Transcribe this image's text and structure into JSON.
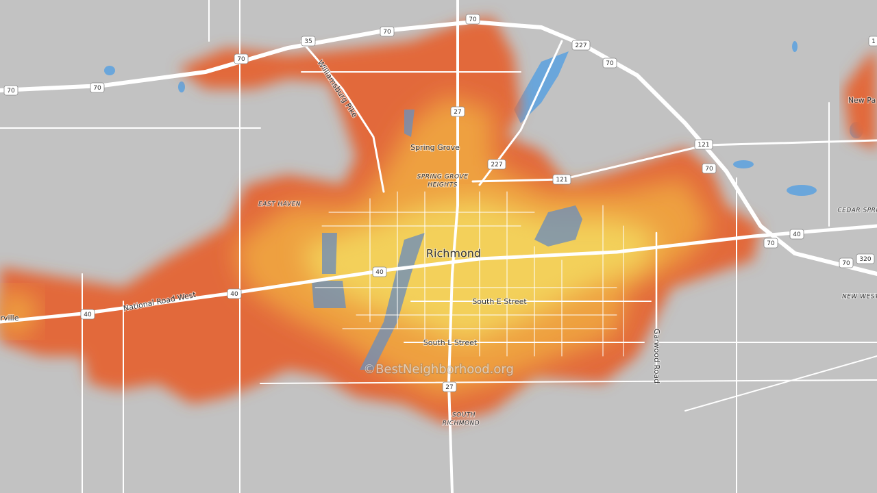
{
  "places": {
    "spring_grove": "Spring Grove",
    "spring_grove_heights": [
      "SPRING GROVE",
      "HEIGHTS"
    ],
    "east_haven": "EAST HAVEN",
    "richmond": "Richmond",
    "south_richmond": [
      "SOUTH",
      "RICHMOND"
    ],
    "new_paris": "New Pa",
    "cedar_springs": "CEDAR SPRI",
    "new_westville": "NEW WEST",
    "centerville": "rville"
  },
  "streets": {
    "south_e": "South E Street",
    "south_l": "South L Street",
    "national_road": "National Road West",
    "williamsburg": "Williamsburg Pike",
    "garwood": "Garwood Road"
  },
  "shields": [
    "70",
    "70",
    "70",
    "70",
    "70",
    "70",
    "70",
    "70",
    "70",
    "35",
    "227",
    "227",
    "27",
    "27",
    "121",
    "121",
    "40",
    "40",
    "40",
    "40",
    "320",
    "1"
  ],
  "watermark": "©BestNeighborhood.org"
}
